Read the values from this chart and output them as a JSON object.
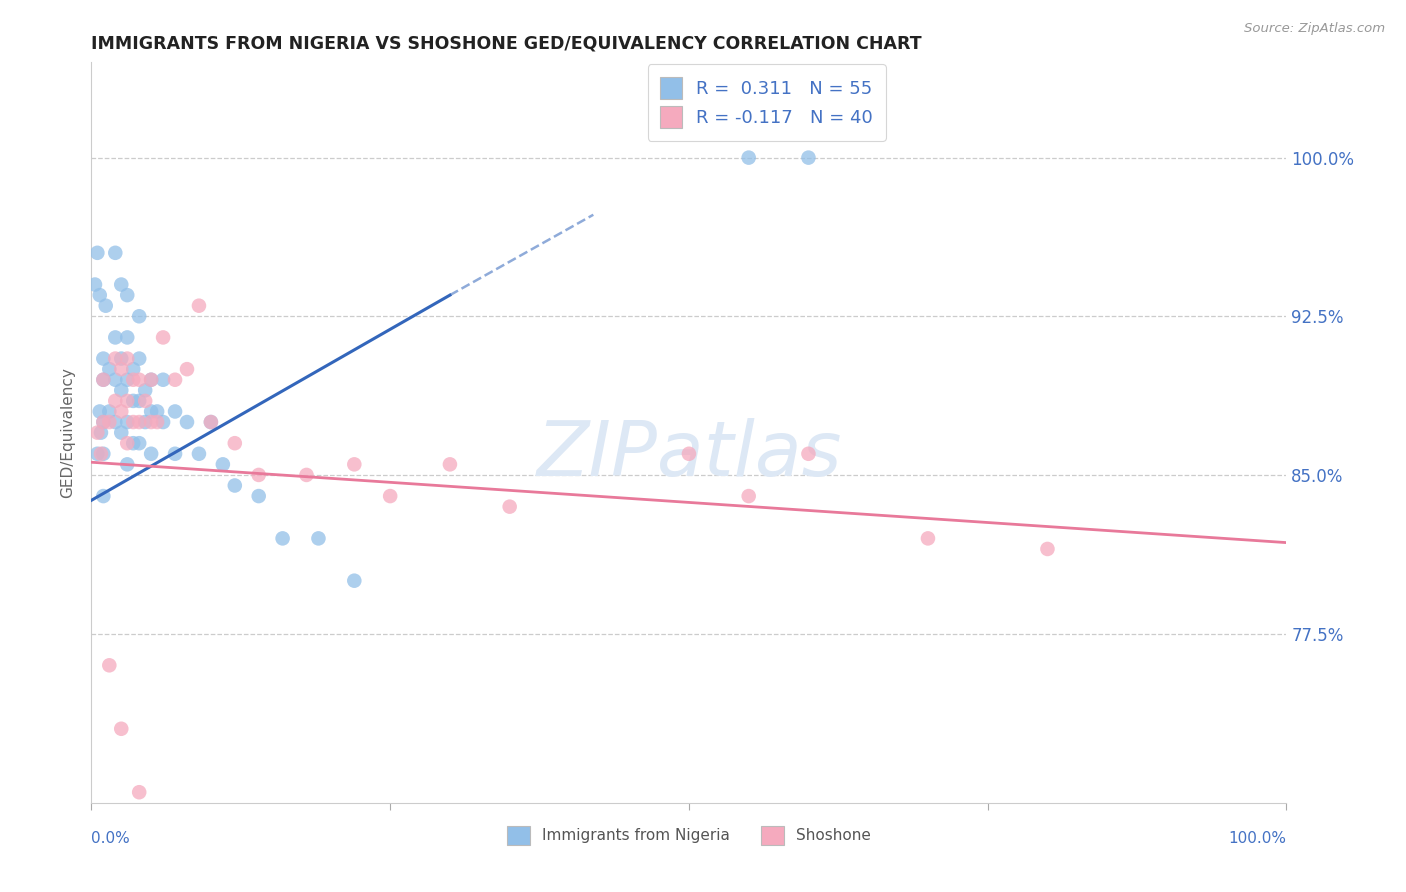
{
  "title": "IMMIGRANTS FROM NIGERIA VS SHOSHONE GED/EQUIVALENCY CORRELATION CHART",
  "source": "Source: ZipAtlas.com",
  "ylabel": "GED/Equivalency",
  "ytick_labels": [
    "77.5%",
    "85.0%",
    "92.5%",
    "100.0%"
  ],
  "ytick_values": [
    0.775,
    0.85,
    0.925,
    1.0
  ],
  "xrange": [
    0.0,
    1.0
  ],
  "yrange": [
    0.695,
    1.045
  ],
  "legend_line1_R": "R =  0.311",
  "legend_line1_N": "N = 55",
  "legend_line2_R": "R = -0.117",
  "legend_line2_N": "N = 40",
  "color_blue": "#92BFE8",
  "color_pink": "#F5AABE",
  "color_blue_line": "#3366BB",
  "color_pink_line": "#E8799A",
  "color_ytick": "#4472C4",
  "color_source": "#999999",
  "blue_line_x0": 0.0,
  "blue_line_y0": 0.838,
  "blue_line_x1": 0.3,
  "blue_line_y1": 0.935,
  "blue_line_dash_x1": 0.42,
  "blue_line_dash_y1": 0.973,
  "pink_line_x0": 0.0,
  "pink_line_y0": 0.856,
  "pink_line_x1": 1.0,
  "pink_line_y1": 0.818,
  "blue_points_x": [
    0.005,
    0.007,
    0.008,
    0.01,
    0.01,
    0.01,
    0.01,
    0.01,
    0.015,
    0.015,
    0.02,
    0.02,
    0.02,
    0.025,
    0.025,
    0.025,
    0.03,
    0.03,
    0.03,
    0.03,
    0.035,
    0.035,
    0.035,
    0.04,
    0.04,
    0.04,
    0.045,
    0.045,
    0.05,
    0.05,
    0.05,
    0.055,
    0.06,
    0.06,
    0.07,
    0.07,
    0.08,
    0.09,
    0.1,
    0.11,
    0.12,
    0.14,
    0.16,
    0.19,
    0.22,
    0.003,
    0.005,
    0.007,
    0.012,
    0.02,
    0.025,
    0.03,
    0.04,
    0.55,
    0.6
  ],
  "blue_points_y": [
    0.86,
    0.88,
    0.87,
    0.905,
    0.895,
    0.875,
    0.86,
    0.84,
    0.9,
    0.88,
    0.915,
    0.895,
    0.875,
    0.905,
    0.89,
    0.87,
    0.915,
    0.895,
    0.875,
    0.855,
    0.9,
    0.885,
    0.865,
    0.905,
    0.885,
    0.865,
    0.89,
    0.875,
    0.895,
    0.88,
    0.86,
    0.88,
    0.895,
    0.875,
    0.88,
    0.86,
    0.875,
    0.86,
    0.875,
    0.855,
    0.845,
    0.84,
    0.82,
    0.82,
    0.8,
    0.94,
    0.955,
    0.935,
    0.93,
    0.955,
    0.94,
    0.935,
    0.925,
    1.0,
    1.0
  ],
  "pink_points_x": [
    0.005,
    0.008,
    0.01,
    0.01,
    0.015,
    0.02,
    0.02,
    0.025,
    0.025,
    0.03,
    0.03,
    0.03,
    0.035,
    0.035,
    0.04,
    0.04,
    0.045,
    0.05,
    0.05,
    0.055,
    0.06,
    0.07,
    0.08,
    0.09,
    0.1,
    0.12,
    0.14,
    0.18,
    0.22,
    0.25,
    0.3,
    0.35,
    0.5,
    0.55,
    0.6,
    0.7,
    0.8,
    0.015,
    0.025,
    0.04
  ],
  "pink_points_y": [
    0.87,
    0.86,
    0.895,
    0.875,
    0.875,
    0.905,
    0.885,
    0.9,
    0.88,
    0.905,
    0.885,
    0.865,
    0.895,
    0.875,
    0.895,
    0.875,
    0.885,
    0.895,
    0.875,
    0.875,
    0.915,
    0.895,
    0.9,
    0.93,
    0.875,
    0.865,
    0.85,
    0.85,
    0.855,
    0.84,
    0.855,
    0.835,
    0.86,
    0.84,
    0.86,
    0.82,
    0.815,
    0.76,
    0.73,
    0.7
  ]
}
